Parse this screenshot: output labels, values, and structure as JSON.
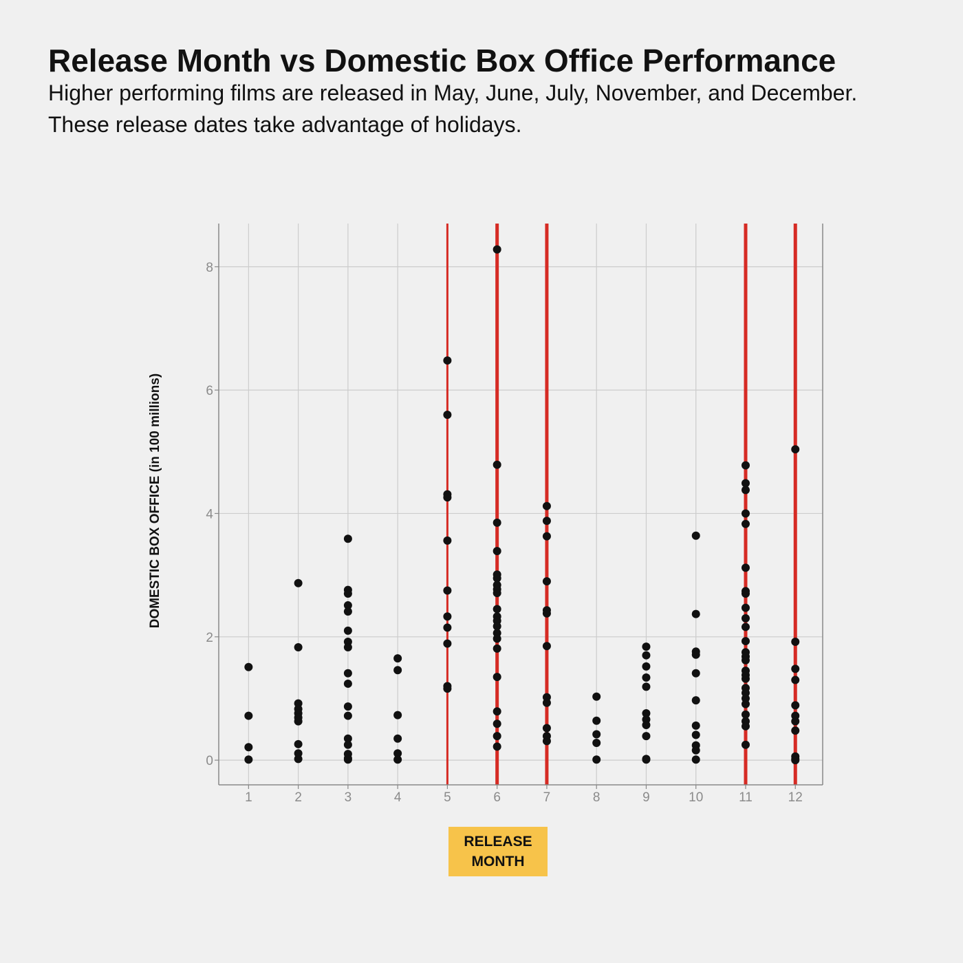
{
  "chart_data": {
    "type": "scatter",
    "title": "Release Month vs Domestic Box Office Performance",
    "subtitle": "Higher performing films are released in May, June, July, November, and December.  These release dates take advantage of holidays.",
    "xlabel": "RELEASE MONTH",
    "ylabel": "DOMESTIC BOX OFFICE (in 100 millions)",
    "xlim": [
      0.4,
      12.55
    ],
    "ylim": [
      -0.4,
      8.7
    ],
    "x_ticks": [
      1,
      2,
      3,
      4,
      5,
      6,
      7,
      8,
      9,
      10,
      11,
      12
    ],
    "y_ticks": [
      0,
      2,
      4,
      6,
      8
    ],
    "grid": true,
    "colors": {
      "points": "#111111",
      "highlight_lines": "#d62b24",
      "grid": "#cccccc",
      "xlabel_box": "#f7c34a"
    },
    "highlight_months": [
      5,
      6,
      7,
      11,
      12
    ],
    "points_by_month": [
      {
        "month": 1,
        "values": [
          1.51,
          0.72,
          0.21,
          0.01
        ]
      },
      {
        "month": 2,
        "values": [
          2.87,
          1.83,
          0.92,
          0.83,
          0.76,
          0.69,
          0.63,
          0.26,
          0.11,
          0.02
        ]
      },
      {
        "month": 3,
        "values": [
          3.59,
          2.76,
          2.7,
          2.51,
          2.41,
          2.1,
          1.92,
          1.83,
          1.41,
          1.24,
          0.87,
          0.72,
          0.35,
          0.25,
          0.1,
          0.03,
          0.01
        ]
      },
      {
        "month": 4,
        "values": [
          1.65,
          1.46,
          0.73,
          0.35,
          0.11,
          0.01
        ]
      },
      {
        "month": 5,
        "values": [
          6.48,
          5.6,
          4.31,
          4.26,
          3.56,
          2.75,
          2.33,
          2.15,
          1.89,
          1.2,
          1.16
        ]
      },
      {
        "month": 6,
        "values": [
          8.28,
          4.79,
          3.85,
          3.39,
          3.01,
          2.95,
          2.84,
          2.77,
          2.71,
          2.45,
          2.33,
          2.26,
          2.17,
          2.06,
          1.97,
          1.81,
          1.35,
          0.79,
          0.59,
          0.39,
          0.22
        ]
      },
      {
        "month": 7,
        "values": [
          4.12,
          3.88,
          3.63,
          2.9,
          2.43,
          2.38,
          1.85,
          1.02,
          0.93,
          0.52,
          0.39,
          0.31
        ]
      },
      {
        "month": 8,
        "values": [
          1.03,
          0.64,
          0.42,
          0.28,
          0.01
        ]
      },
      {
        "month": 9,
        "values": [
          1.84,
          1.7,
          1.52,
          1.34,
          1.19,
          0.76,
          0.66,
          0.57,
          0.39,
          0.02,
          0.01
        ]
      },
      {
        "month": 10,
        "values": [
          3.64,
          2.37,
          1.76,
          1.71,
          1.41,
          0.97,
          0.56,
          0.41,
          0.24,
          0.16,
          0.01
        ]
      },
      {
        "month": 11,
        "values": [
          4.78,
          4.49,
          4.38,
          4.0,
          3.83,
          3.12,
          2.74,
          2.7,
          2.47,
          2.3,
          2.16,
          1.93,
          1.75,
          1.68,
          1.62,
          1.45,
          1.38,
          1.32,
          1.17,
          1.09,
          1.0,
          0.91,
          0.74,
          0.63,
          0.55,
          0.25
        ]
      },
      {
        "month": 12,
        "values": [
          5.04,
          1.92,
          1.48,
          1.3,
          0.89,
          0.72,
          0.63,
          0.48,
          0.06,
          0.02,
          0.0
        ]
      }
    ]
  }
}
